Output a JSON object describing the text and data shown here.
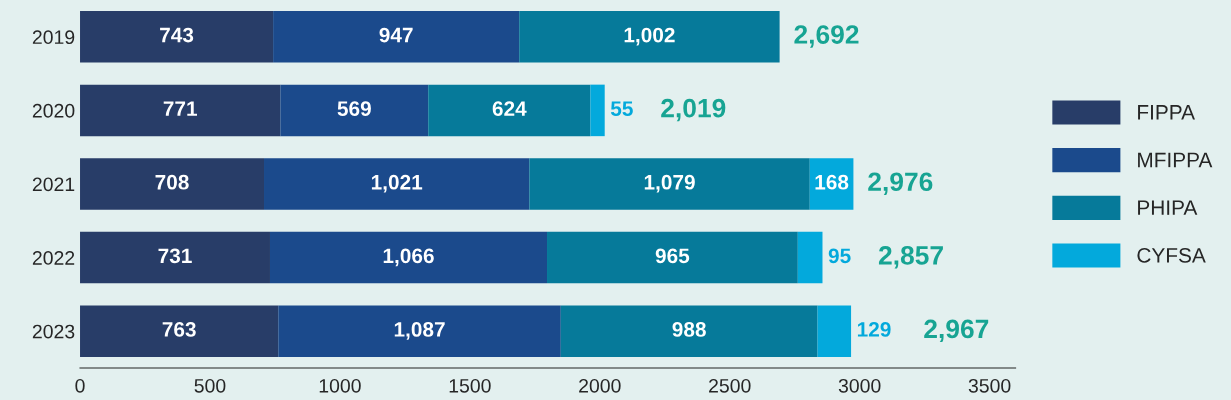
{
  "chart_data": {
    "type": "bar",
    "orientation": "horizontal",
    "stacked": true,
    "categories": [
      "2019",
      "2020",
      "2021",
      "2022",
      "2023"
    ],
    "series": [
      {
        "name": "FIPPA",
        "color": "#283d68",
        "values": [
          743,
          771,
          708,
          731,
          763
        ],
        "value_labels": [
          "743",
          "771",
          "708",
          "731",
          "763"
        ]
      },
      {
        "name": "MFIPPA",
        "color": "#1b4a8c",
        "values": [
          947,
          569,
          1021,
          1066,
          1087
        ],
        "value_labels": [
          "947",
          "569",
          "1,021",
          "1,066",
          "1,087"
        ]
      },
      {
        "name": "PHIPA",
        "color": "#067a9a",
        "values": [
          1002,
          624,
          1079,
          965,
          988
        ],
        "value_labels": [
          "1,002",
          "624",
          "1,079",
          "965",
          "988"
        ]
      },
      {
        "name": "CYFSA",
        "color": "#03a9dc",
        "values": [
          null,
          55,
          168,
          95,
          129
        ],
        "value_labels": [
          null,
          "55",
          "168",
          "95",
          "129"
        ]
      }
    ],
    "totals": [
      "2,692",
      "2,019",
      "2,976",
      "2,857",
      "2,967"
    ],
    "xlim": [
      0,
      3600
    ],
    "xticks": [
      0,
      500,
      1000,
      1500,
      2000,
      2500,
      3000,
      3500
    ],
    "legend": "right"
  }
}
